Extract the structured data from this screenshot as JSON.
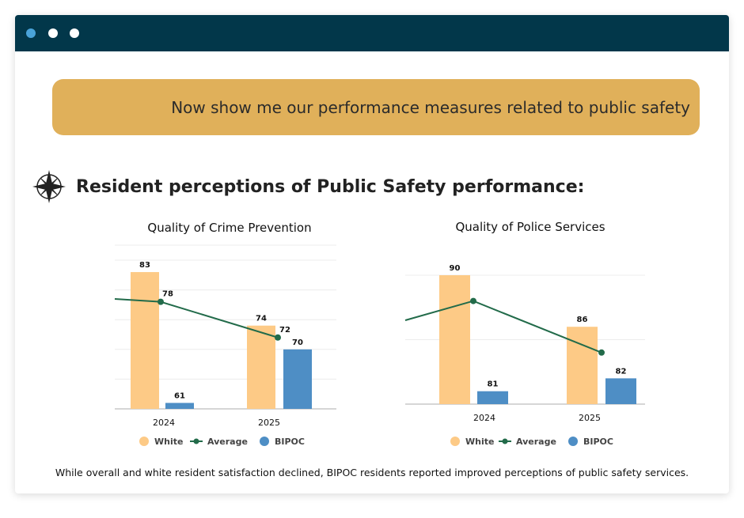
{
  "window": {
    "dots": [
      "#4aa3d9",
      "#ffffff",
      "#ffffff"
    ]
  },
  "prompt": "Now show me our performance measures related to public safety",
  "heading": "Resident perceptions of Public Safety performance:",
  "footer": "While overall and white resident satisfaction declined, BIPOC residents reported improved perceptions of public safety services.",
  "colors": {
    "white": "#fdca86",
    "bipoc": "#4e8ec5",
    "average": "#226b4a"
  },
  "chart_data": [
    {
      "type": "bar",
      "title": "Quality of Crime Prevention",
      "categories": [
        "2024",
        "2025"
      ],
      "ylim": [
        60,
        85
      ],
      "series": [
        {
          "name": "White",
          "values": [
            83,
            74
          ],
          "labels": [
            "83",
            "74"
          ]
        },
        {
          "name": "Average",
          "type": "line",
          "values": [
            78,
            72
          ],
          "labels": [
            "78",
            "72"
          ]
        },
        {
          "name": "BIPOC",
          "values": [
            61,
            70
          ],
          "labels": [
            "61",
            "70"
          ]
        }
      ],
      "legend": [
        "White",
        "Average",
        "BIPOC"
      ]
    },
    {
      "type": "bar",
      "title": "Quality of Police Services",
      "categories": [
        "2024",
        "2025"
      ],
      "ylim": [
        80,
        90
      ],
      "series": [
        {
          "name": "White",
          "values": [
            90,
            86
          ],
          "labels": [
            "90",
            "86"
          ]
        },
        {
          "name": "Average",
          "type": "line",
          "values": [
            88,
            84
          ],
          "labels": [
            "",
            ""
          ]
        },
        {
          "name": "BIPOC",
          "values": [
            81,
            82
          ],
          "labels": [
            "81",
            "82"
          ]
        }
      ],
      "legend": [
        "White",
        "Average",
        "BIPOC"
      ]
    }
  ]
}
